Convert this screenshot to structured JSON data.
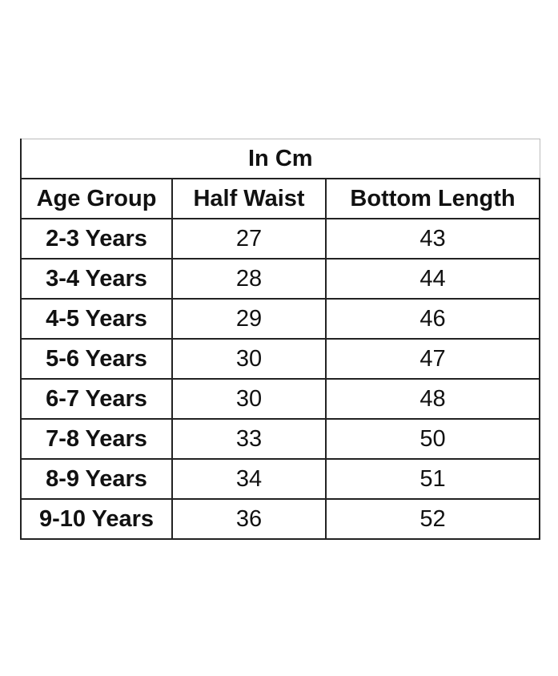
{
  "table": {
    "title": "In Cm",
    "header": [
      "Age Group",
      "Half Waist",
      "Bottom Length"
    ],
    "rows": [
      [
        "2-3 Years",
        27,
        43
      ],
      [
        "3-4 Years",
        28,
        44
      ],
      [
        "4-5 Years",
        29,
        46
      ],
      [
        "5-6 Years",
        30,
        47
      ],
      [
        "6-7 Years",
        30,
        48
      ],
      [
        "7-8 Years",
        33,
        50
      ],
      [
        "8-9 Years",
        34,
        51
      ],
      [
        "9-10 Years",
        36,
        52
      ]
    ]
  }
}
